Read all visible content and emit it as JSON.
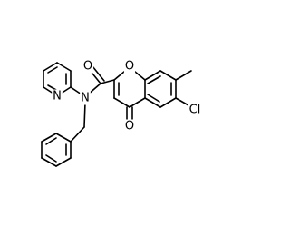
{
  "atoms": [
    {
      "label": "O"
    },
    {
      "label": "O"
    },
    {
      "label": "O"
    },
    {
      "label": "N"
    },
    {
      "label": "N"
    },
    {
      "label": "Cl"
    }
  ]
}
